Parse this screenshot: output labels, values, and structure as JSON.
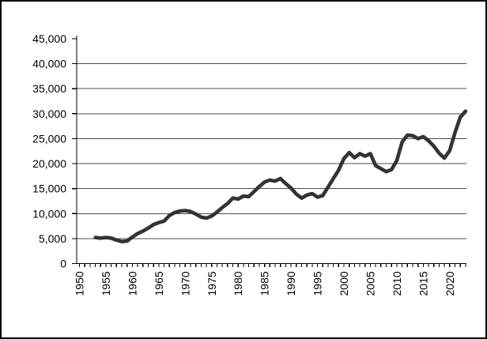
{
  "chart_data": {
    "type": "line",
    "title": "",
    "xlabel": "",
    "ylabel": "",
    "legend": "none",
    "grid": "horizontal",
    "background": "#ffffff",
    "border_color": "#000000",
    "line_color": "#333333",
    "grid_color": "#4d4d4d",
    "ylim": [
      0,
      45000
    ],
    "xlim": [
      1950,
      2023
    ],
    "y_ticks": [
      0,
      5000,
      10000,
      15000,
      20000,
      25000,
      30000,
      35000,
      40000,
      45000
    ],
    "y_tick_labels": [
      "0",
      "5,000",
      "10,000",
      "15,000",
      "20,000",
      "25,000",
      "30,000",
      "35,000",
      "40,000",
      "45,000"
    ],
    "x_tick_years": [
      1950,
      1955,
      1960,
      1965,
      1970,
      1975,
      1980,
      1985,
      1990,
      1995,
      2000,
      2005,
      2010,
      2015,
      2020
    ],
    "x_tick_labels": [
      "1950",
      "1955",
      "1960",
      "1965",
      "1970",
      "1975",
      "1980",
      "1985",
      "1990",
      "1995",
      "2000",
      "2005",
      "2010",
      "2015",
      "2020"
    ],
    "x_minor_tick_every": 1,
    "x": [
      1953,
      1954,
      1955,
      1956,
      1957,
      1958,
      1959,
      1960,
      1961,
      1962,
      1963,
      1964,
      1965,
      1966,
      1967,
      1968,
      1969,
      1970,
      1971,
      1972,
      1973,
      1974,
      1975,
      1976,
      1977,
      1978,
      1979,
      1980,
      1981,
      1982,
      1983,
      1984,
      1985,
      1986,
      1987,
      1988,
      1989,
      1990,
      1991,
      1992,
      1993,
      1994,
      1995,
      1996,
      1997,
      1998,
      1999,
      2000,
      2001,
      2002,
      2003,
      2004,
      2005,
      2006,
      2007,
      2008,
      2009,
      2010,
      2011,
      2012,
      2013,
      2014,
      2015,
      2016,
      2017,
      2018,
      2019,
      2020,
      2021,
      2022,
      2023
    ],
    "values": [
      5200,
      5100,
      5200,
      5100,
      4700,
      4400,
      4500,
      5300,
      6000,
      6500,
      7100,
      7800,
      8200,
      8500,
      9600,
      10200,
      10500,
      10600,
      10400,
      9900,
      9300,
      9100,
      9500,
      10300,
      11200,
      12000,
      13100,
      12900,
      13500,
      13400,
      14400,
      15400,
      16300,
      16700,
      16500,
      17000,
      16000,
      15100,
      13900,
      13100,
      13700,
      14000,
      13300,
      13600,
      15300,
      17000,
      18700,
      21000,
      22200,
      21200,
      22000,
      21500,
      22000,
      19600,
      19000,
      18400,
      18800,
      20600,
      24300,
      25700,
      25600,
      25000,
      25400,
      24600,
      23500,
      22100,
      21100,
      22600,
      26200,
      29300,
      30500
    ]
  }
}
